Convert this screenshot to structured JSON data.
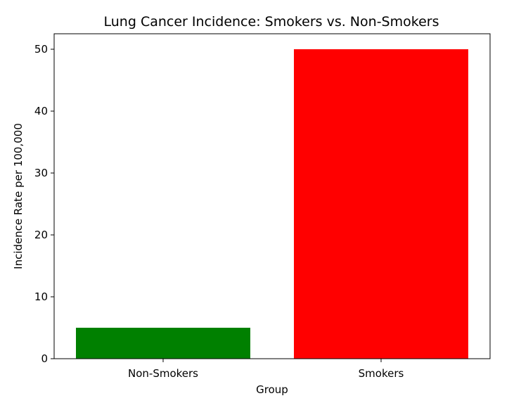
{
  "chart_data": {
    "type": "bar",
    "title": "Lung Cancer Incidence: Smokers vs. Non-Smokers",
    "xlabel": "Group",
    "ylabel": "Incidence Rate per 100,000",
    "categories": [
      "Non-Smokers",
      "Smokers"
    ],
    "values": [
      5,
      50
    ],
    "colors": [
      "#008000",
      "#ff0000"
    ],
    "ylim": [
      0,
      52.5
    ],
    "yticks": [
      0,
      10,
      20,
      30,
      40,
      50
    ],
    "grid": false,
    "legend": "none"
  }
}
